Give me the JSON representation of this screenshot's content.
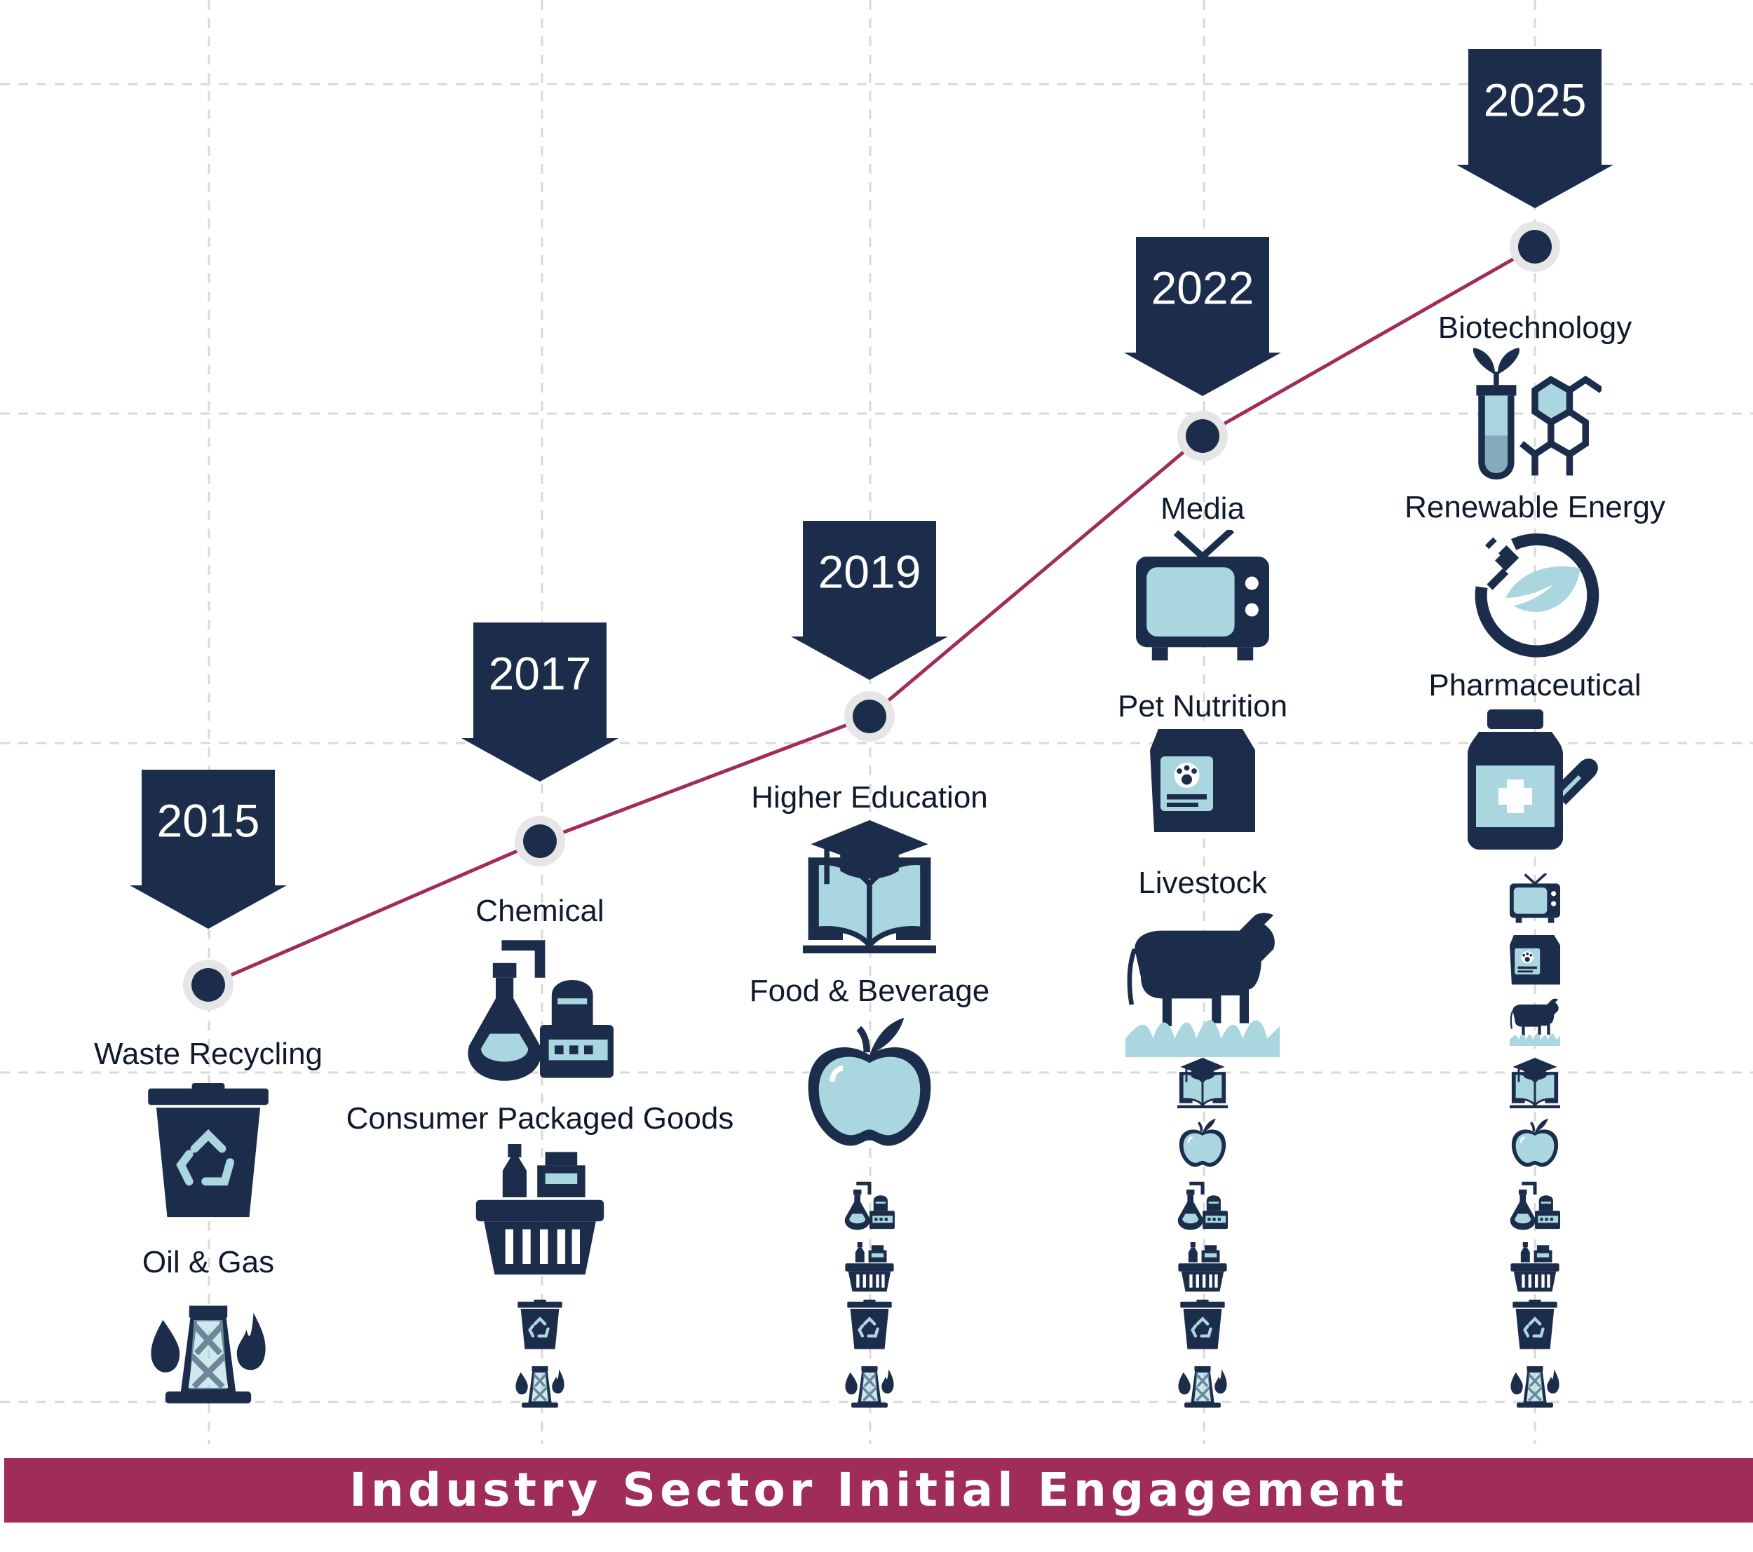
{
  "colors": {
    "navy": "#1b2d4b",
    "light_blue": "#a9d6df",
    "accent": "#a02d59",
    "grid": "#d9d9d9"
  },
  "milestones": [
    {
      "year": "2015",
      "new_sectors": [
        {
          "label": "Waste Recycling",
          "icon": "recycle-bin-icon"
        },
        {
          "label": "Oil & Gas",
          "icon": "oil-gas-icon"
        }
      ],
      "carried_icons": []
    },
    {
      "year": "2017",
      "new_sectors": [
        {
          "label": "Chemical",
          "icon": "chemical-plant-icon"
        },
        {
          "label": "Consumer Packaged Goods",
          "icon": "shopping-basket-icon"
        }
      ],
      "carried_icons": [
        "recycle-bin-icon",
        "oil-gas-icon"
      ]
    },
    {
      "year": "2019",
      "new_sectors": [
        {
          "label": "Higher Education",
          "icon": "graduation-book-icon"
        },
        {
          "label": "Food & Beverage",
          "icon": "apple-icon"
        }
      ],
      "carried_icons": [
        "chemical-plant-icon",
        "shopping-basket-icon",
        "recycle-bin-icon",
        "oil-gas-icon"
      ]
    },
    {
      "year": "2022",
      "new_sectors": [
        {
          "label": "Media",
          "icon": "television-icon"
        },
        {
          "label": "Pet Nutrition",
          "icon": "pet-food-bag-icon"
        },
        {
          "label": "Livestock",
          "icon": "cow-icon"
        }
      ],
      "carried_icons": [
        "graduation-book-icon",
        "apple-icon",
        "chemical-plant-icon",
        "shopping-basket-icon",
        "recycle-bin-icon",
        "oil-gas-icon"
      ]
    },
    {
      "year": "2025",
      "new_sectors": [
        {
          "label": "Biotechnology",
          "icon": "biotech-icon"
        },
        {
          "label": "Renewable Energy",
          "icon": "renewable-energy-icon"
        },
        {
          "label": "Pharmaceutical",
          "icon": "pharmaceutical-icon"
        }
      ],
      "carried_icons": [
        "television-icon",
        "pet-food-bag-icon",
        "cow-icon",
        "graduation-book-icon",
        "apple-icon",
        "chemical-plant-icon",
        "shopping-basket-icon",
        "recycle-bin-icon",
        "oil-gas-icon"
      ]
    }
  ],
  "banner": {
    "title": "Industry Sector Initial Engagement"
  }
}
